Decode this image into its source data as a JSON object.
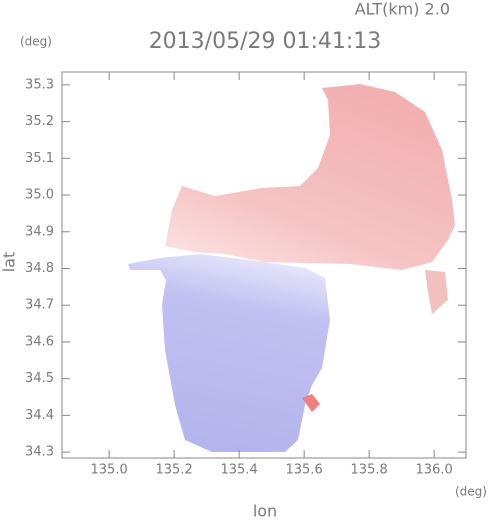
{
  "chart_data": {
    "type": "field",
    "annotation": "ALT(km) 2.0",
    "title": "2013/05/29 01:41:13",
    "y_unit": "(deg)",
    "x_unit": "(deg)",
    "xlabel": "lon",
    "ylabel": "lat",
    "xlim": [
      134.855,
      136.098
    ],
    "ylim": [
      34.284,
      35.335
    ],
    "xticks": [
      {
        "value": 135.0,
        "label": "135.0"
      },
      {
        "value": 135.2,
        "label": "135.2"
      },
      {
        "value": 135.4,
        "label": "135.4"
      },
      {
        "value": 135.6,
        "label": "135.6"
      },
      {
        "value": 135.8,
        "label": "135.8"
      },
      {
        "value": 136.0,
        "label": "136.0"
      }
    ],
    "yticks": [
      34.3,
      34.4,
      34.5,
      34.6,
      34.7,
      34.8,
      34.9,
      {
        "value": 35.0,
        "label": "35.0"
      },
      35.1,
      35.2,
      35.3
    ]
  }
}
